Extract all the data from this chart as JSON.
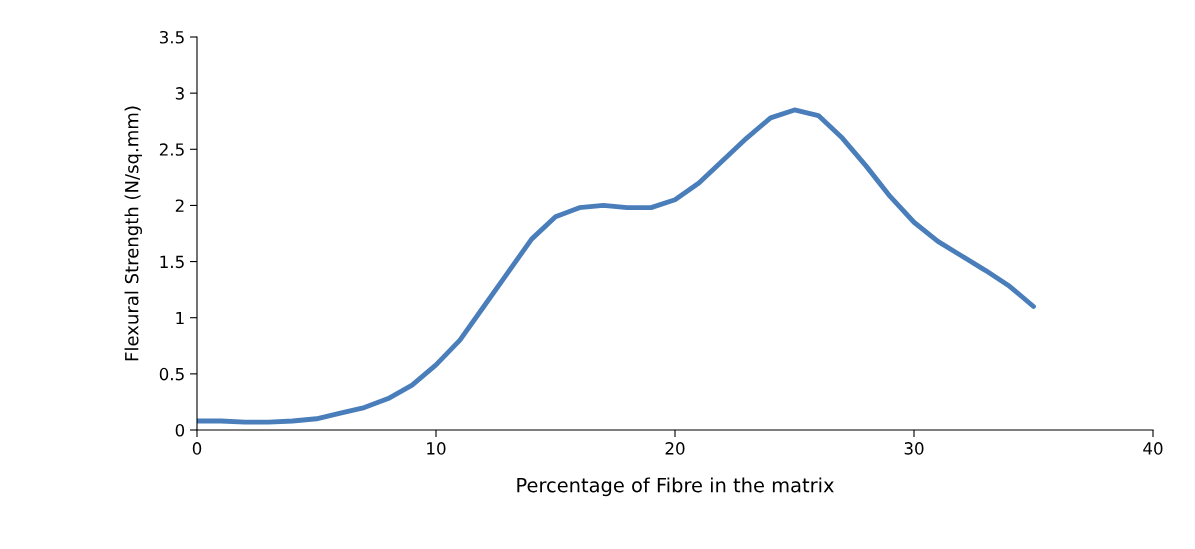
{
  "chart_data": {
    "type": "line",
    "xlabel": "Percentage of Fibre in the matrix",
    "ylabel": "Flexural Strength (N/sq.mm)",
    "x": [
      0,
      1,
      2,
      3,
      4,
      5,
      6,
      7,
      8,
      9,
      10,
      11,
      12,
      13,
      14,
      15,
      16,
      17,
      18,
      19,
      20,
      21,
      22,
      23,
      24,
      25,
      26,
      27,
      28,
      29,
      30,
      31,
      32,
      33,
      34,
      35
    ],
    "series": [
      {
        "color": "#4a7ebb",
        "values": [
          0.08,
          0.08,
          0.07,
          0.07,
          0.08,
          0.1,
          0.15,
          0.2,
          0.28,
          0.4,
          0.58,
          0.8,
          1.1,
          1.4,
          1.7,
          1.9,
          1.98,
          2.0,
          1.98,
          1.98,
          2.05,
          2.2,
          2.4,
          2.6,
          2.78,
          2.85,
          2.8,
          2.6,
          2.35,
          2.08,
          1.85,
          1.68,
          1.55,
          1.42,
          1.28,
          1.1
        ]
      }
    ],
    "xlim": [
      0,
      40
    ],
    "xticks": [
      0,
      10,
      20,
      30,
      40
    ],
    "ylim": [
      0,
      3.5
    ],
    "yticks": [
      0,
      0.5,
      1,
      1.5,
      2,
      2.5,
      3,
      3.5
    ],
    "grid": false,
    "legend": false,
    "marker": "none",
    "line_style": "solid"
  }
}
